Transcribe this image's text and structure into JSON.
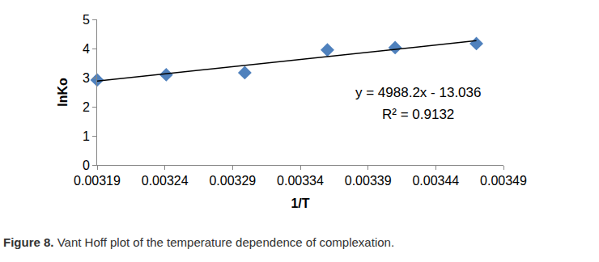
{
  "chart_data": {
    "type": "scatter",
    "x_label": "1/T",
    "y_label": "lnKo",
    "xlim": [
      0.00319,
      0.00349
    ],
    "xticks": [
      0.00319,
      0.00324,
      0.00329,
      0.00334,
      0.00339,
      0.00344,
      0.00349
    ],
    "ylim": [
      0,
      5
    ],
    "yticks": [
      0,
      1,
      2,
      3,
      4,
      5
    ],
    "grid": false,
    "series": [
      {
        "type": "scatter",
        "marker": "diamond",
        "color": "#4f81bd",
        "x": [
          0.00319,
          0.003241,
          0.003299,
          0.00336,
          0.00341,
          0.00347
        ],
        "values": [
          2.92,
          3.1,
          3.17,
          3.95,
          4.03,
          4.17
        ]
      },
      {
        "type": "line",
        "color": "#000000",
        "line_style": "solid",
        "x": [
          0.00319,
          0.00347
        ],
        "values": [
          2.88,
          4.27
        ]
      }
    ],
    "annotations": [
      "y = 4988.2x - 13.036",
      "R² = 0.9132"
    ],
    "caption": {
      "label": "Figure 8.",
      "text": "Vant Hoff plot of the temperature dependence of complexation."
    }
  }
}
